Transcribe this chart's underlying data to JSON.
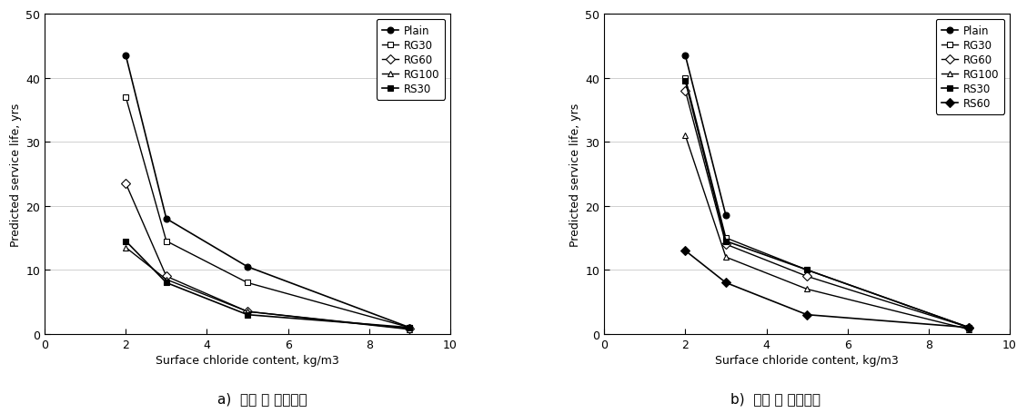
{
  "x_values": [
    2,
    3,
    5,
    9
  ],
  "chart_a": {
    "series": [
      {
        "label": "Plain",
        "marker": "o",
        "color": "#000000",
        "mfc": "#000000",
        "ms": 5,
        "lw": 1.2,
        "y": [
          43.5,
          18.0,
          10.5,
          1.0
        ]
      },
      {
        "label": "RG30",
        "marker": "s",
        "color": "#000000",
        "mfc": "#ffffff",
        "ms": 5,
        "lw": 1.0,
        "y": [
          37.0,
          14.5,
          8.0,
          1.0
        ]
      },
      {
        "label": "RG60",
        "marker": "D",
        "color": "#000000",
        "mfc": "#ffffff",
        "ms": 5,
        "lw": 1.0,
        "y": [
          23.5,
          9.0,
          3.5,
          0.8
        ]
      },
      {
        "label": "RG100",
        "marker": "^",
        "color": "#000000",
        "mfc": "#ffffff",
        "ms": 5,
        "lw": 1.0,
        "y": [
          13.5,
          8.5,
          3.5,
          0.7
        ]
      },
      {
        "label": "RS30",
        "marker": "s",
        "color": "#000000",
        "mfc": "#000000",
        "ms": 5,
        "lw": 1.2,
        "y": [
          14.5,
          8.0,
          3.0,
          1.0
        ]
      }
    ]
  },
  "chart_b": {
    "series": [
      {
        "label": "Plain",
        "marker": "o",
        "color": "#000000",
        "mfc": "#000000",
        "ms": 5,
        "lw": 1.2,
        "y": [
          43.5,
          18.5,
          null,
          null
        ]
      },
      {
        "label": "RG30",
        "marker": "s",
        "color": "#000000",
        "mfc": "#ffffff",
        "ms": 5,
        "lw": 1.0,
        "y": [
          40.0,
          15.0,
          10.0,
          1.0
        ]
      },
      {
        "label": "RG60",
        "marker": "D",
        "color": "#000000",
        "mfc": "#ffffff",
        "ms": 5,
        "lw": 1.0,
        "y": [
          38.0,
          14.0,
          9.0,
          1.0
        ]
      },
      {
        "label": "RG100",
        "marker": "^",
        "color": "#000000",
        "mfc": "#ffffff",
        "ms": 5,
        "lw": 1.0,
        "y": [
          31.0,
          12.0,
          7.0,
          0.7
        ]
      },
      {
        "label": "RS30",
        "marker": "s",
        "color": "#000000",
        "mfc": "#000000",
        "ms": 5,
        "lw": 1.2,
        "y": [
          39.5,
          14.5,
          10.0,
          1.0
        ]
      },
      {
        "label": "RS60",
        "marker": "D",
        "color": "#000000",
        "mfc": "#000000",
        "ms": 5,
        "lw": 1.2,
        "y": [
          13.0,
          8.0,
          3.0,
          1.0
        ]
      }
    ]
  },
  "xlabel": "Surface chloride content, kg/m3",
  "ylabel": "Predicted service life, yrs",
  "xlim": [
    0,
    10
  ],
  "ylim": [
    0,
    50
  ],
  "xticks": [
    0,
    2,
    4,
    6,
    8,
    10
  ],
  "yticks": [
    0,
    10,
    20,
    30,
    40,
    50
  ],
  "grid_color": "#d0d0d0",
  "bg_color": "#ffffff",
  "label_a": "a)  개질 전 순환골재",
  "label_b": "b)  개질 후 순환골재"
}
